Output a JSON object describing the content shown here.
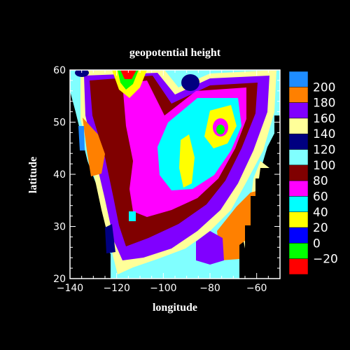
{
  "chart_data": {
    "type": "heatmap",
    "title": "geopotential height",
    "xlabel": "longitude",
    "ylabel": "latitude",
    "xlim": [
      -140,
      -50
    ],
    "ylim": [
      20,
      60
    ],
    "x_ticks": [
      "−140",
      "−120",
      "−100",
      "−80",
      "−60"
    ],
    "y_ticks": [
      "20",
      "30",
      "40",
      "50",
      "60"
    ],
    "levels": [
      "200",
      "180",
      "160",
      "140",
      "120",
      "100",
      "80",
      "60",
      "40",
      "20",
      "0",
      "−20"
    ],
    "level_colors": [
      "#1e8cff",
      "#ff8000",
      "#8000ff",
      "#ffff99",
      "#000080",
      "#80ffff",
      "#800000",
      "#ff00ff",
      "#00ffff",
      "#ffff00",
      "#0000ff",
      "#00ff00",
      "#ff0000"
    ],
    "grid": false,
    "colorbar": "right",
    "background": "#000000"
  }
}
